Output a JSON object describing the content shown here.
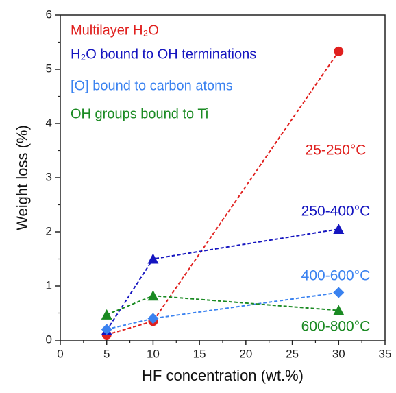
{
  "chart_data": {
    "type": "line",
    "xlabel": "HF concentration (wt.%)",
    "ylabel": "Weight loss (%)",
    "xlim": [
      0,
      35
    ],
    "xticks": [
      0,
      5,
      10,
      15,
      20,
      25,
      30,
      35
    ],
    "ylim": [
      0,
      6
    ],
    "yticks": [
      0,
      1,
      2,
      3,
      4,
      5,
      6
    ],
    "legend": "upper left",
    "series": [
      {
        "name": "Multilayer H₂O",
        "color": "#e0201e",
        "marker": "circle",
        "x": [
          5,
          10,
          30
        ],
        "values": [
          0.1,
          0.35,
          5.33
        ]
      },
      {
        "name": "H₂O bound to OH terminations",
        "color": "#1515c0",
        "marker": "triangle",
        "x": [
          5,
          10,
          30
        ],
        "values": [
          0.18,
          1.5,
          2.05
        ]
      },
      {
        "name": "[O] bound to carbon atoms",
        "color": "#3a82f0",
        "marker": "diamond",
        "x": [
          5,
          10,
          30
        ],
        "values": [
          0.2,
          0.4,
          0.88
        ]
      },
      {
        "name": "OH groups bound to Ti",
        "color": "#1a8a22",
        "marker": "triangle",
        "x": [
          5,
          10,
          30
        ],
        "values": [
          0.47,
          0.82,
          0.55
        ]
      }
    ],
    "annotations": [
      {
        "text": "25-250°C",
        "color": "#e0201e"
      },
      {
        "text": "250-400°C",
        "color": "#1515c0"
      },
      {
        "text": "400-600°C",
        "color": "#3a82f0"
      },
      {
        "text": "600-800°C",
        "color": "#1a8a22"
      }
    ]
  }
}
